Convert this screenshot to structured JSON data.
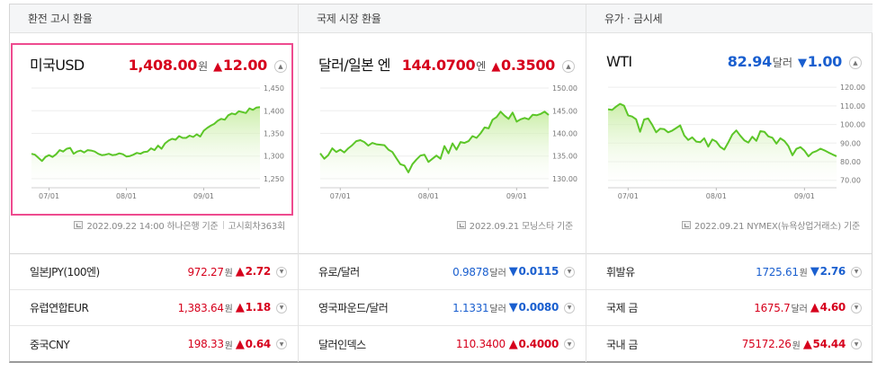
{
  "sections": [
    {
      "title": "환전 고시 환율",
      "main": {
        "name": "미국USD",
        "price": "1,408.00",
        "unit": "원",
        "direction": "up",
        "arrow": "▲",
        "change": "12.00"
      },
      "source": [
        "2022.09.22 14:00 하나은행 기준",
        "고시회차363회"
      ],
      "rows": [
        {
          "name": "일본JPY(100엔)",
          "price": "972.27",
          "unit": "원",
          "direction": "up",
          "arrow": "▲",
          "change": "2.72"
        },
        {
          "name": "유럽연합EUR",
          "price": "1,383.64",
          "unit": "원",
          "direction": "up",
          "arrow": "▲",
          "change": "1.18"
        },
        {
          "name": "중국CNY",
          "price": "198.33",
          "unit": "원",
          "direction": "up",
          "arrow": "▲",
          "change": "0.64"
        }
      ]
    },
    {
      "title": "국제 시장 환율",
      "main": {
        "name": "달러/일본 엔",
        "price": "144.0700",
        "unit": "엔",
        "direction": "up",
        "arrow": "▲",
        "change": "0.3500"
      },
      "source": [
        "2022.09.21 모닝스타 기준"
      ],
      "rows": [
        {
          "name": "유로/달러",
          "price": "0.9878",
          "unit": "달러",
          "direction": "down",
          "arrow": "▼",
          "change": "0.0115"
        },
        {
          "name": "영국파운드/달러",
          "price": "1.1331",
          "unit": "달러",
          "direction": "down",
          "arrow": "▼",
          "change": "0.0080"
        },
        {
          "name": "달러인덱스",
          "price": "110.3400",
          "unit": "",
          "direction": "up",
          "arrow": "▲",
          "change": "0.4000"
        }
      ]
    },
    {
      "title": "유가 · 금시세",
      "main": {
        "name": "WTI",
        "price": "82.94",
        "unit": "달러",
        "direction": "down",
        "arrow": "▼",
        "change": "1.00"
      },
      "source": [
        "2022.09.21 NYMEX(뉴욕상업거래소) 기준"
      ],
      "rows": [
        {
          "name": "휘발유",
          "price": "1725.61",
          "unit": "원",
          "direction": "down",
          "arrow": "▼",
          "change": "2.76"
        },
        {
          "name": "국제 금",
          "price": "1675.7",
          "unit": "달러",
          "direction": "up",
          "arrow": "▲",
          "change": "4.60"
        },
        {
          "name": "국내 금",
          "price": "75172.26",
          "unit": "원",
          "direction": "up",
          "arrow": "▲",
          "change": "54.44"
        }
      ]
    }
  ],
  "colors": {
    "up": "#d6001c",
    "down": "#1a5fcf",
    "line": "#5cc628",
    "fill_top": "#c5ec9f",
    "highlight_border": "#ee4b8f"
  },
  "icons": {
    "toggle": "chevron-up-icon",
    "source": "chart-source-icon"
  },
  "chart_data": [
    {
      "type": "area",
      "title": "미국USD",
      "x_ticks": [
        "07/01",
        "08/01",
        "09/01"
      ],
      "x_tick_index": [
        5,
        27,
        49
      ],
      "ylim": [
        1230,
        1460
      ],
      "y_ticks": [
        1250,
        1300,
        1350,
        1400,
        1450
      ],
      "values": [
        1305,
        1303,
        1296,
        1289,
        1298,
        1302,
        1298,
        1304,
        1313,
        1310,
        1316,
        1318,
        1305,
        1310,
        1312,
        1308,
        1313,
        1312,
        1310,
        1305,
        1302,
        1303,
        1305,
        1302,
        1303,
        1306,
        1304,
        1299,
        1300,
        1303,
        1307,
        1305,
        1309,
        1310,
        1317,
        1313,
        1323,
        1316,
        1328,
        1334,
        1338,
        1336,
        1344,
        1340,
        1340,
        1345,
        1342,
        1348,
        1343,
        1356,
        1362,
        1367,
        1371,
        1378,
        1382,
        1380,
        1390,
        1394,
        1392,
        1399,
        1397,
        1395,
        1405,
        1402,
        1407,
        1408
      ]
    },
    {
      "type": "area",
      "title": "달러/일본 엔",
      "x_ticks": [
        "07/01",
        "08/01",
        "09/01"
      ],
      "x_tick_index": [
        5,
        27,
        49
      ],
      "ylim": [
        128,
        151
      ],
      "y_ticks": [
        130.0,
        135.0,
        140.0,
        145.0,
        150.0
      ],
      "values": [
        135.6,
        134.4,
        135.2,
        136.7,
        135.9,
        136.4,
        135.8,
        136.7,
        137.4,
        138.3,
        138.5,
        138.1,
        137.3,
        137.9,
        137.6,
        137.5,
        137.4,
        136.4,
        135.9,
        134.5,
        133.2,
        132.9,
        131.4,
        133.2,
        134.2,
        135.1,
        135.3,
        133.7,
        134.4,
        135.1,
        134.4,
        137.2,
        135.6,
        137.8,
        136.4,
        138.1,
        137.9,
        138.3,
        139.4,
        139.0,
        140.0,
        141.3,
        141.1,
        143.0,
        143.6,
        144.8,
        143.9,
        143.2,
        144.6,
        142.6,
        143.1,
        143.4,
        143.1,
        144.1,
        144.0,
        144.3,
        144.8,
        144.07
      ]
    },
    {
      "type": "area",
      "title": "WTI",
      "x_ticks": [
        "07/01",
        "08/01",
        "09/01"
      ],
      "x_tick_index": [
        5,
        27,
        49
      ],
      "ylim": [
        66,
        122
      ],
      "y_ticks": [
        70.0,
        80.0,
        90.0,
        100.0,
        110.0,
        120.0
      ],
      "values": [
        108.2,
        107.8,
        109.6,
        111.1,
        110.1,
        104.9,
        104.3,
        102.8,
        96.1,
        102.7,
        103.2,
        99.9,
        95.8,
        97.7,
        97.5,
        95.8,
        96.7,
        98.1,
        99.5,
        94.1,
        91.7,
        93.1,
        90.8,
        90.5,
        92.6,
        88.1,
        91.9,
        90.8,
        87.9,
        86.5,
        90.4,
        94.6,
        96.8,
        93.9,
        91.5,
        90.3,
        93.4,
        91.2,
        96.4,
        96.1,
        93.6,
        92.9,
        89.7,
        92.6,
        91.1,
        88.4,
        83.5,
        86.9,
        87.8,
        85.9,
        82.9,
        84.9,
        85.7,
        87.0,
        86.1,
        84.9,
        83.9,
        82.94
      ]
    }
  ]
}
